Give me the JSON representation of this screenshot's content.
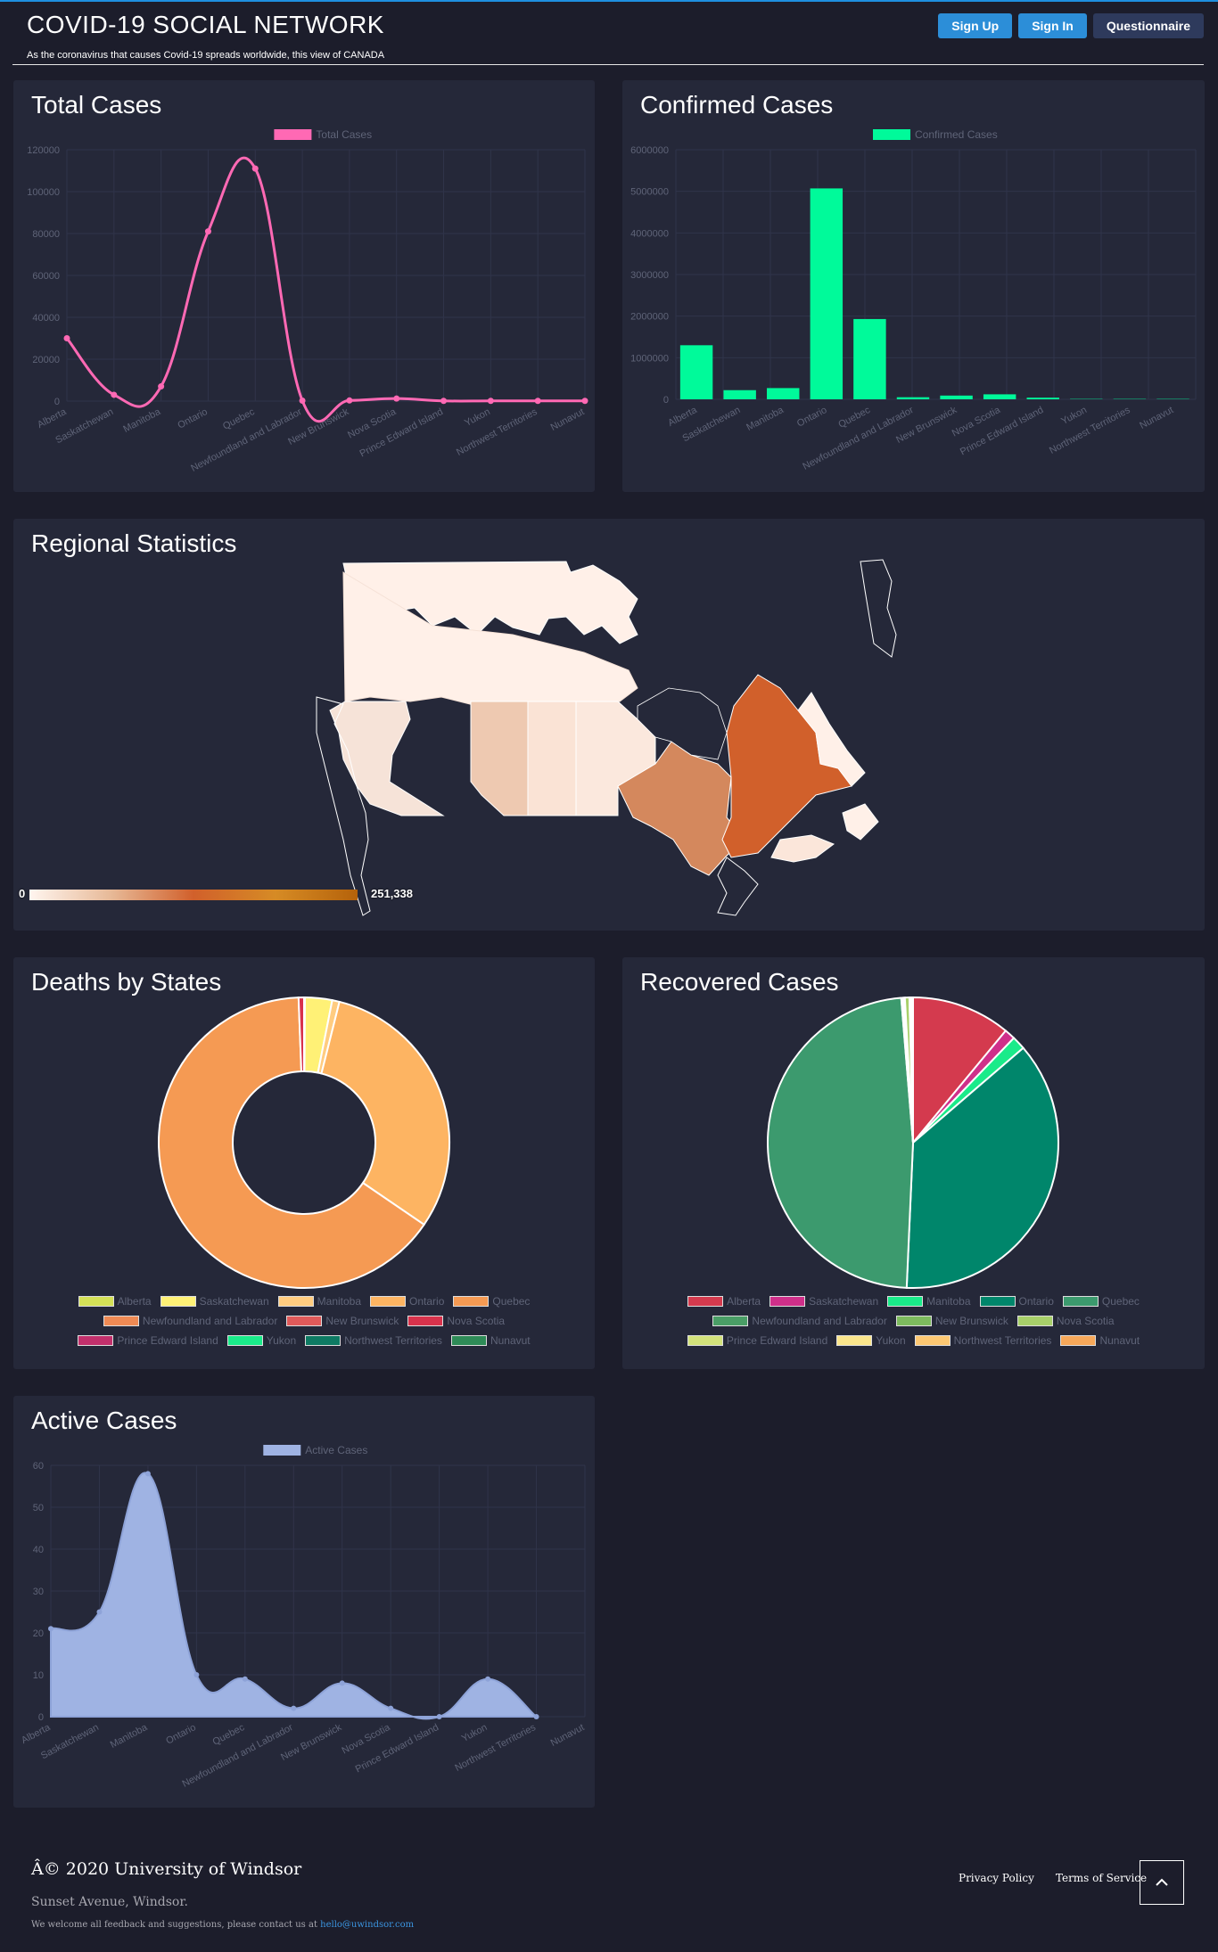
{
  "header": {
    "title": "COVID-19 SOCIAL NETWORK",
    "subtitle": "As the coronavirus that causes Covid-19 spreads worldwide, this view of CANADA",
    "signup_label": "Sign Up",
    "signin_label": "Sign In",
    "questionnaire_label": "Questionnaire"
  },
  "cards": {
    "total": {
      "title": "Total Cases"
    },
    "confirmed": {
      "title": "Confirmed Cases"
    },
    "regional": {
      "title": "Regional Statistics",
      "scale_min": "0",
      "scale_max": "251,338"
    },
    "deaths": {
      "title": "Deaths by States"
    },
    "recovered": {
      "title": "Recovered Cases"
    },
    "active": {
      "title": "Active Cases"
    }
  },
  "colors": {
    "accent": "#2c8ed8",
    "card_bg": "#252839",
    "page_bg": "#1c1d2b",
    "total_line": "#ff69b4",
    "confirmed_bar": "#00fa9a",
    "active_fill": "#9fb3e3"
  },
  "provinces": [
    "Alberta",
    "Saskatchewan",
    "Manitoba",
    "Ontario",
    "Quebec",
    "Newfoundland and Labrador",
    "New Brunswick",
    "Nova Scotia",
    "Prince Edward Island",
    "Yukon",
    "Northwest Territories",
    "Nunavut"
  ],
  "chart_data": [
    {
      "id": "total",
      "type": "line",
      "title": "Total Cases",
      "series": [
        {
          "name": "Total Cases",
          "values": [
            30000,
            3000,
            7000,
            81000,
            111000,
            200,
            300,
            1200,
            100,
            100,
            100,
            100
          ]
        }
      ],
      "ylim": [
        0,
        120000
      ],
      "yticks": [
        0,
        20000,
        40000,
        60000,
        80000,
        100000,
        120000
      ],
      "legend": "top"
    },
    {
      "id": "confirmed",
      "type": "bar",
      "title": "Confirmed Cases",
      "series": [
        {
          "name": "Confirmed Cases",
          "values": [
            1300000,
            220000,
            270000,
            5070000,
            1930000,
            50000,
            90000,
            120000,
            40000,
            8000,
            8000,
            8000
          ]
        }
      ],
      "ylim": [
        0,
        6000000
      ],
      "yticks": [
        0,
        1000000,
        2000000,
        3000000,
        4000000,
        5000000,
        6000000
      ],
      "legend": "top"
    },
    {
      "id": "deaths",
      "type": "pie",
      "title": "Deaths by States",
      "donut": true,
      "values": [
        0.1,
        3.0,
        0.8,
        30.5,
        64.6,
        0.0,
        0.0,
        0.6,
        0.0,
        0.0,
        0.0,
        0.0
      ],
      "colors": [
        "#d4e157",
        "#fff176",
        "#ffcc80",
        "#fdb462",
        "#f59a53",
        "#ef8a54",
        "#e05a5a",
        "#d8324c",
        "#c2306c",
        "#1aeb8a",
        "#0e7a63",
        "#2e8b57"
      ],
      "legend": "bottom"
    },
    {
      "id": "recovered",
      "type": "pie",
      "title": "Recovered Cases",
      "donut": false,
      "values": [
        11.0,
        1.2,
        1.5,
        37.0,
        48.0,
        0.2,
        0.2,
        0.5,
        0.1,
        0.1,
        0.1,
        0.1
      ],
      "colors": [
        "#d43a4e",
        "#cf2f8a",
        "#1aeb8a",
        "#00866b",
        "#3c9a6e",
        "#4a9e66",
        "#7dbb5e",
        "#a8d06a",
        "#d3e27b",
        "#fbe68c",
        "#fdc873",
        "#f7a85a"
      ],
      "legend": "bottom"
    },
    {
      "id": "active",
      "type": "area",
      "title": "Active Cases",
      "series": [
        {
          "name": "Active Cases",
          "values": [
            21,
            25,
            58,
            10,
            9,
            2,
            8,
            2,
            0,
            9,
            0,
            null
          ]
        }
      ],
      "ylim": [
        0,
        60
      ],
      "yticks": [
        0,
        10,
        20,
        30,
        40,
        50,
        60
      ],
      "legend": "top"
    }
  ]
}
